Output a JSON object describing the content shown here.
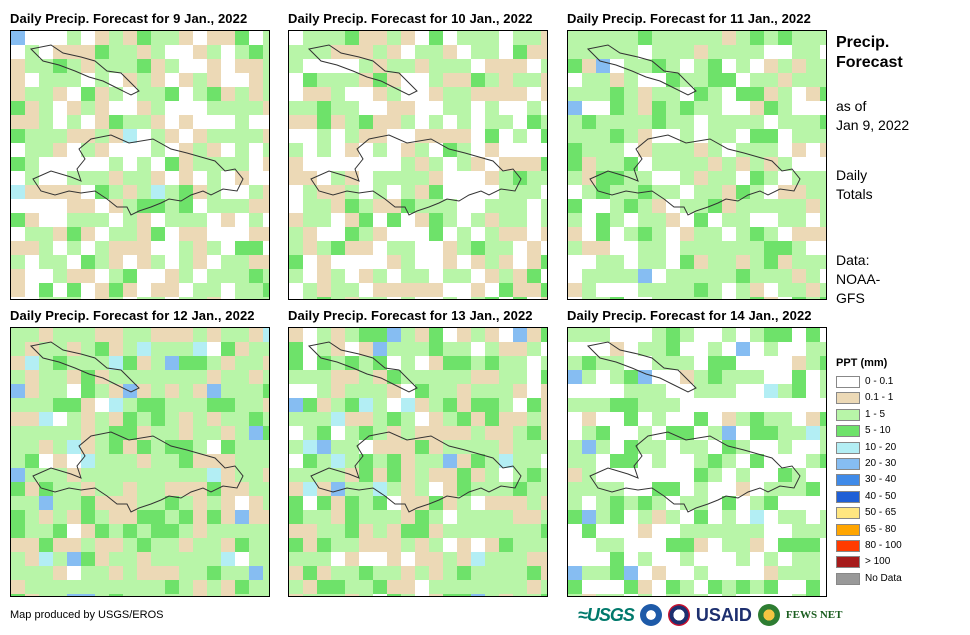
{
  "panels": [
    {
      "title": "Daily Precip. Forecast for 9 Jan., 2022"
    },
    {
      "title": "Daily Precip. Forecast for 10 Jan., 2022"
    },
    {
      "title": "Daily Precip. Forecast for 11 Jan., 2022"
    },
    {
      "title": "Daily Precip. Forecast for 12 Jan., 2022"
    },
    {
      "title": "Daily Precip. Forecast for 13 Jan., 2022"
    },
    {
      "title": "Daily Precip. Forecast for 14 Jan., 2022"
    }
  ],
  "sidebar": {
    "title_line1": "Precip.",
    "title_line2": "Forecast",
    "asof_line1": "as of",
    "asof_line2": "Jan 9, 2022",
    "totals_line1": "Daily",
    "totals_line2": "Totals",
    "data_line1": "Data:",
    "data_line2": "NOAA-",
    "data_line3": "GFS"
  },
  "legend": {
    "title": "PPT (mm)",
    "items": [
      {
        "label": "0 - 0.1",
        "color": "#ffffff"
      },
      {
        "label": "0.1 - 1",
        "color": "#ecd9b6"
      },
      {
        "label": "1 - 5",
        "color": "#b8f5a8"
      },
      {
        "label": "5 - 10",
        "color": "#6ee26a"
      },
      {
        "label": "10 - 20",
        "color": "#b3eef4"
      },
      {
        "label": "20 - 30",
        "color": "#86bdf2"
      },
      {
        "label": "30 - 40",
        "color": "#3f8ae8"
      },
      {
        "label": "40 - 50",
        "color": "#1f5fd6"
      },
      {
        "label": "50 - 65",
        "color": "#ffe680"
      },
      {
        "label": "65 - 80",
        "color": "#ffa500"
      },
      {
        "label": "80 - 100",
        "color": "#ff3b00"
      },
      {
        "label": "> 100",
        "color": "#a61b1b"
      },
      {
        "label": "No Data",
        "color": "#999999"
      }
    ]
  },
  "footer": {
    "credit": "Map produced by USGS/EROS",
    "logos": {
      "usgs": "≈USGS",
      "usaid": "USAID",
      "fews": "FEWS NET"
    }
  }
}
